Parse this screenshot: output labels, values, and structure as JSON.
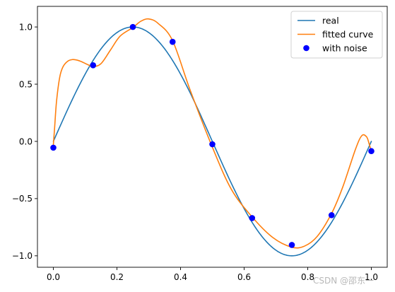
{
  "chart_data": {
    "type": "line",
    "title": "",
    "xlabel": "",
    "ylabel": "",
    "xlim": [
      -0.05,
      1.05
    ],
    "ylim": [
      -1.1,
      1.18
    ],
    "xticks": [
      0.0,
      0.2,
      0.4,
      0.6,
      0.8,
      1.0
    ],
    "xtick_labels": [
      "0.0",
      "0.2",
      "0.4",
      "0.6",
      "0.8",
      "1.0"
    ],
    "yticks": [
      -1.0,
      -0.5,
      0.0,
      0.5,
      1.0
    ],
    "ytick_labels": [
      "−1.0",
      "−0.5",
      "0.0",
      "0.5",
      "1.0"
    ],
    "grid": false,
    "legend_position": "top-right",
    "series": [
      {
        "name": "real",
        "kind": "line",
        "color": "#1f77b4",
        "function": "sin(2*pi*x)",
        "x_range": [
          0,
          1
        ]
      },
      {
        "name": "fitted curve",
        "kind": "line",
        "color": "#ff7f0e",
        "x": [
          0.0,
          0.004,
          0.01,
          0.02,
          0.03,
          0.045,
          0.06,
          0.075,
          0.09,
          0.105,
          0.125,
          0.15,
          0.18,
          0.21,
          0.25,
          0.275,
          0.3,
          0.33,
          0.375,
          0.43,
          0.5,
          0.56,
          0.625,
          0.69,
          0.75,
          0.79,
          0.83,
          0.875,
          0.91,
          0.95,
          0.97,
          0.985,
          0.993,
          1.0
        ],
        "y": [
          -0.03,
          0.12,
          0.35,
          0.56,
          0.65,
          0.7,
          0.715,
          0.71,
          0.695,
          0.675,
          0.655,
          0.68,
          0.8,
          0.92,
          0.995,
          1.05,
          1.07,
          1.03,
          0.88,
          0.45,
          -0.05,
          -0.42,
          -0.66,
          -0.84,
          -0.925,
          -0.915,
          -0.83,
          -0.63,
          -0.4,
          -0.07,
          0.05,
          0.04,
          -0.02,
          -0.09
        ]
      },
      {
        "name": "with noise",
        "kind": "scatter",
        "color": "#0000ff",
        "x": [
          0.0,
          0.125,
          0.25,
          0.375,
          0.5,
          0.625,
          0.75,
          0.875,
          1.0
        ],
        "y": [
          -0.055,
          0.665,
          1.0,
          0.87,
          -0.025,
          -0.67,
          -0.905,
          -0.645,
          -0.085
        ]
      }
    ]
  },
  "watermark": "CSDN @邵东一"
}
